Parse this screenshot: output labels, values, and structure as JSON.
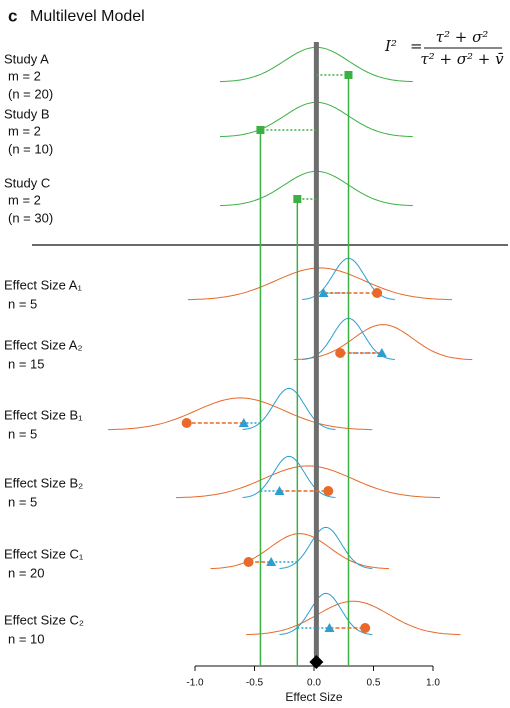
{
  "chart_data": {
    "type": "multilevel-density",
    "panel": "c",
    "title": "Multilevel Model",
    "xlabel": "Effect Size",
    "formula": {
      "lhs": "I²",
      "equals": "=",
      "numerator": "τ² + σ²",
      "denominator": "τ² + σ² + v̄"
    },
    "xlim": [
      -1.0,
      1.0
    ],
    "xticks": [
      {
        "value": -1.0,
        "label": "-1.0"
      },
      -0.5,
      {
        "value": 0.0,
        "label": "0.0"
      },
      0.5,
      {
        "value": 1.0,
        "label": "1.0"
      }
    ],
    "overall": 0.02,
    "colors": {
      "study": "#3cb043",
      "overall": "#6e6e6e",
      "triangle": "#2a9fd0",
      "circle": "#e8692a"
    },
    "studies": [
      {
        "label": "Study A",
        "m_label": "m = 2",
        "n_label": "(n = 20)",
        "estimate": 0.29,
        "curve": {
          "mean": 0.02,
          "sd": 0.27
        }
      },
      {
        "label": "Study B",
        "m_label": "m = 2",
        "n_label": "(n = 10)",
        "estimate": -0.45,
        "curve": {
          "mean": 0.02,
          "sd": 0.27
        }
      },
      {
        "label": "Study C",
        "m_label": "m = 2",
        "n_label": "(n = 30)",
        "estimate": -0.14,
        "curve": {
          "mean": 0.02,
          "sd": 0.27
        }
      }
    ],
    "effects": [
      {
        "label": "Effect Size A₁",
        "n_label": "n = 5",
        "study": 0,
        "triangle": 0.08,
        "circle": 0.53,
        "blue_curve": {
          "mean": 0.29,
          "sd": 0.13
        },
        "orange_curve": {
          "mean": 0.05,
          "sd": 0.37
        }
      },
      {
        "label": "Effect Size A₂",
        "n_label": "n = 15",
        "study": 0,
        "triangle": 0.57,
        "circle": 0.22,
        "blue_curve": {
          "mean": 0.29,
          "sd": 0.13
        },
        "orange_curve": {
          "mean": 0.58,
          "sd": 0.25
        }
      },
      {
        "label": "Effect Size B₁",
        "n_label": "n = 5",
        "study": 1,
        "triangle": -0.59,
        "circle": -1.07,
        "blue_curve": {
          "mean": -0.21,
          "sd": 0.13
        },
        "orange_curve": {
          "mean": -0.62,
          "sd": 0.37
        }
      },
      {
        "label": "Effect Size B₂",
        "n_label": "n = 5",
        "study": 1,
        "triangle": -0.29,
        "circle": 0.12,
        "blue_curve": {
          "mean": -0.21,
          "sd": 0.13
        },
        "orange_curve": {
          "mean": -0.05,
          "sd": 0.37
        }
      },
      {
        "label": "Effect Size C₁",
        "n_label": "n = 20",
        "study": 2,
        "triangle": -0.36,
        "circle": -0.55,
        "blue_curve": {
          "mean": 0.1,
          "sd": 0.13
        },
        "orange_curve": {
          "mean": -0.12,
          "sd": 0.25
        }
      },
      {
        "label": "Effect Size C₂",
        "n_label": "n = 10",
        "study": 2,
        "triangle": 0.13,
        "circle": 0.43,
        "blue_curve": {
          "mean": 0.1,
          "sd": 0.13
        },
        "orange_curve": {
          "mean": 0.33,
          "sd": 0.3
        }
      }
    ]
  }
}
